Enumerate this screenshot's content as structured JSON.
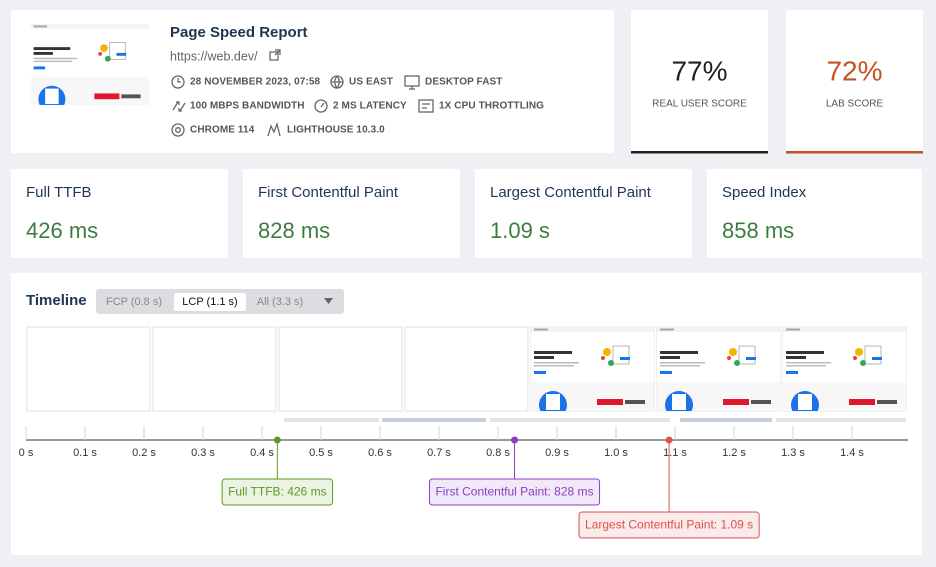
{
  "report": {
    "title": "Page Speed Report",
    "url": "https://web.dev/",
    "meta": [
      "28 NOVEMBER 2023, 07:58",
      "US EAST",
      "DESKTOP FAST",
      "100 MBPS BANDWIDTH",
      "2 MS LATENCY",
      "1X CPU THROTTLING",
      "CHROME 114",
      "LIGHTHOUSE 10.3.0"
    ]
  },
  "scores": [
    {
      "value": "77%",
      "label": "REAL USER SCORE",
      "color": "#222222"
    },
    {
      "value": "72%",
      "label": "LAB SCORE",
      "color": "#c4511f"
    }
  ],
  "metrics": [
    {
      "label": "Full TTFB",
      "value": "426 ms"
    },
    {
      "label": "First Contentful Paint",
      "value": "828 ms"
    },
    {
      "label": "Largest Contentful Paint",
      "value": "1.09 s"
    },
    {
      "label": "Speed Index",
      "value": "858 ms"
    }
  ],
  "timeline": {
    "title": "Timeline",
    "tabs": [
      "FCP (0.8 s)",
      "LCP (1.1 s)",
      "All (3.3 s)"
    ],
    "active_tab": 1,
    "xlim": [
      0,
      1.5
    ],
    "ticks": [
      {
        "value": 0,
        "label": "0 s"
      },
      {
        "value": 0.1,
        "label": "0.1 s"
      },
      {
        "value": 0.2,
        "label": "0.2 s"
      },
      {
        "value": 0.3,
        "label": "0.3 s"
      },
      {
        "value": 0.4,
        "label": "0.4 s"
      },
      {
        "value": 0.5,
        "label": "0.5 s"
      },
      {
        "value": 0.6,
        "label": "0.6 s"
      },
      {
        "value": 0.7,
        "label": "0.7 s"
      },
      {
        "value": 0.8,
        "label": "0.8 s"
      },
      {
        "value": 0.9,
        "label": "0.9 s"
      },
      {
        "value": 1.0,
        "label": "1.0 s"
      },
      {
        "value": 1.1,
        "label": "1.1 s"
      },
      {
        "value": 1.2,
        "label": "1.2 s"
      },
      {
        "value": 1.3,
        "label": "1.3 s"
      },
      {
        "value": 1.4,
        "label": "1.4 s"
      }
    ],
    "markers": [
      {
        "value": 0.426,
        "label": "Full TTFB: 426 ms",
        "color": "#5e9a1f"
      },
      {
        "value": 0.828,
        "label": "First Contentful Paint: 828 ms",
        "color": "#8a3fc2"
      },
      {
        "value": 1.09,
        "label": "Largest Contentful Paint: 1.09 s",
        "color": "#d9534f"
      }
    ]
  }
}
